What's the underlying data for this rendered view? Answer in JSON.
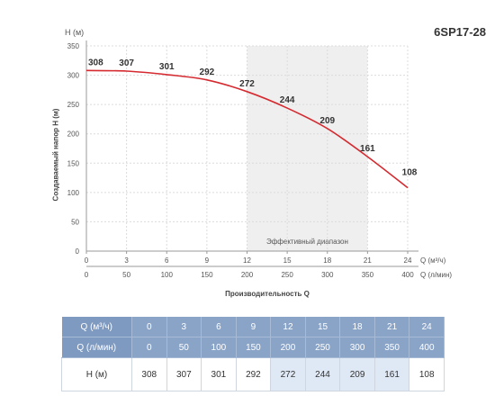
{
  "header": {
    "model": "6SP17-28"
  },
  "chart_data": {
    "type": "line",
    "title": "6SP17-28",
    "ylabel": "Создаваемый напор H (м)",
    "y_unit_label": "H (м)",
    "xlabel": "Производительность Q",
    "x_unit_label": "Q (м³/ч)",
    "x2_unit_label": "Q (л/мин)",
    "ylim": [
      0,
      350
    ],
    "yticks": [
      0,
      50,
      100,
      150,
      200,
      250,
      300,
      350
    ],
    "xlim": [
      0,
      24
    ],
    "xticks": [
      0,
      3,
      6,
      9,
      12,
      15,
      18,
      21,
      24
    ],
    "x2ticks": [
      0,
      50,
      100,
      150,
      200,
      250,
      300,
      350,
      400
    ],
    "grid": true,
    "series": [
      {
        "x": [
          0,
          3,
          6,
          9,
          12,
          15,
          18,
          21,
          24
        ],
        "values": [
          308,
          307,
          301,
          292,
          272,
          244,
          209,
          161,
          108
        ],
        "color": "#d42a30"
      }
    ],
    "efficient_range": {
      "label": "Эффективный диапазон",
      "x": [
        12,
        21
      ],
      "color": "#efefef"
    }
  },
  "table": {
    "rows": [
      {
        "label": "Q (м³/ч)",
        "values": [
          "0",
          "3",
          "6",
          "9",
          "12",
          "15",
          "18",
          "21",
          "24"
        ]
      },
      {
        "label": "Q (л/мин)",
        "values": [
          "0",
          "50",
          "100",
          "150",
          "200",
          "250",
          "300",
          "350",
          "400"
        ]
      },
      {
        "label": "H (м)",
        "values": [
          "308",
          "307",
          "301",
          "292",
          "272",
          "244",
          "209",
          "161",
          "108"
        ]
      }
    ]
  }
}
